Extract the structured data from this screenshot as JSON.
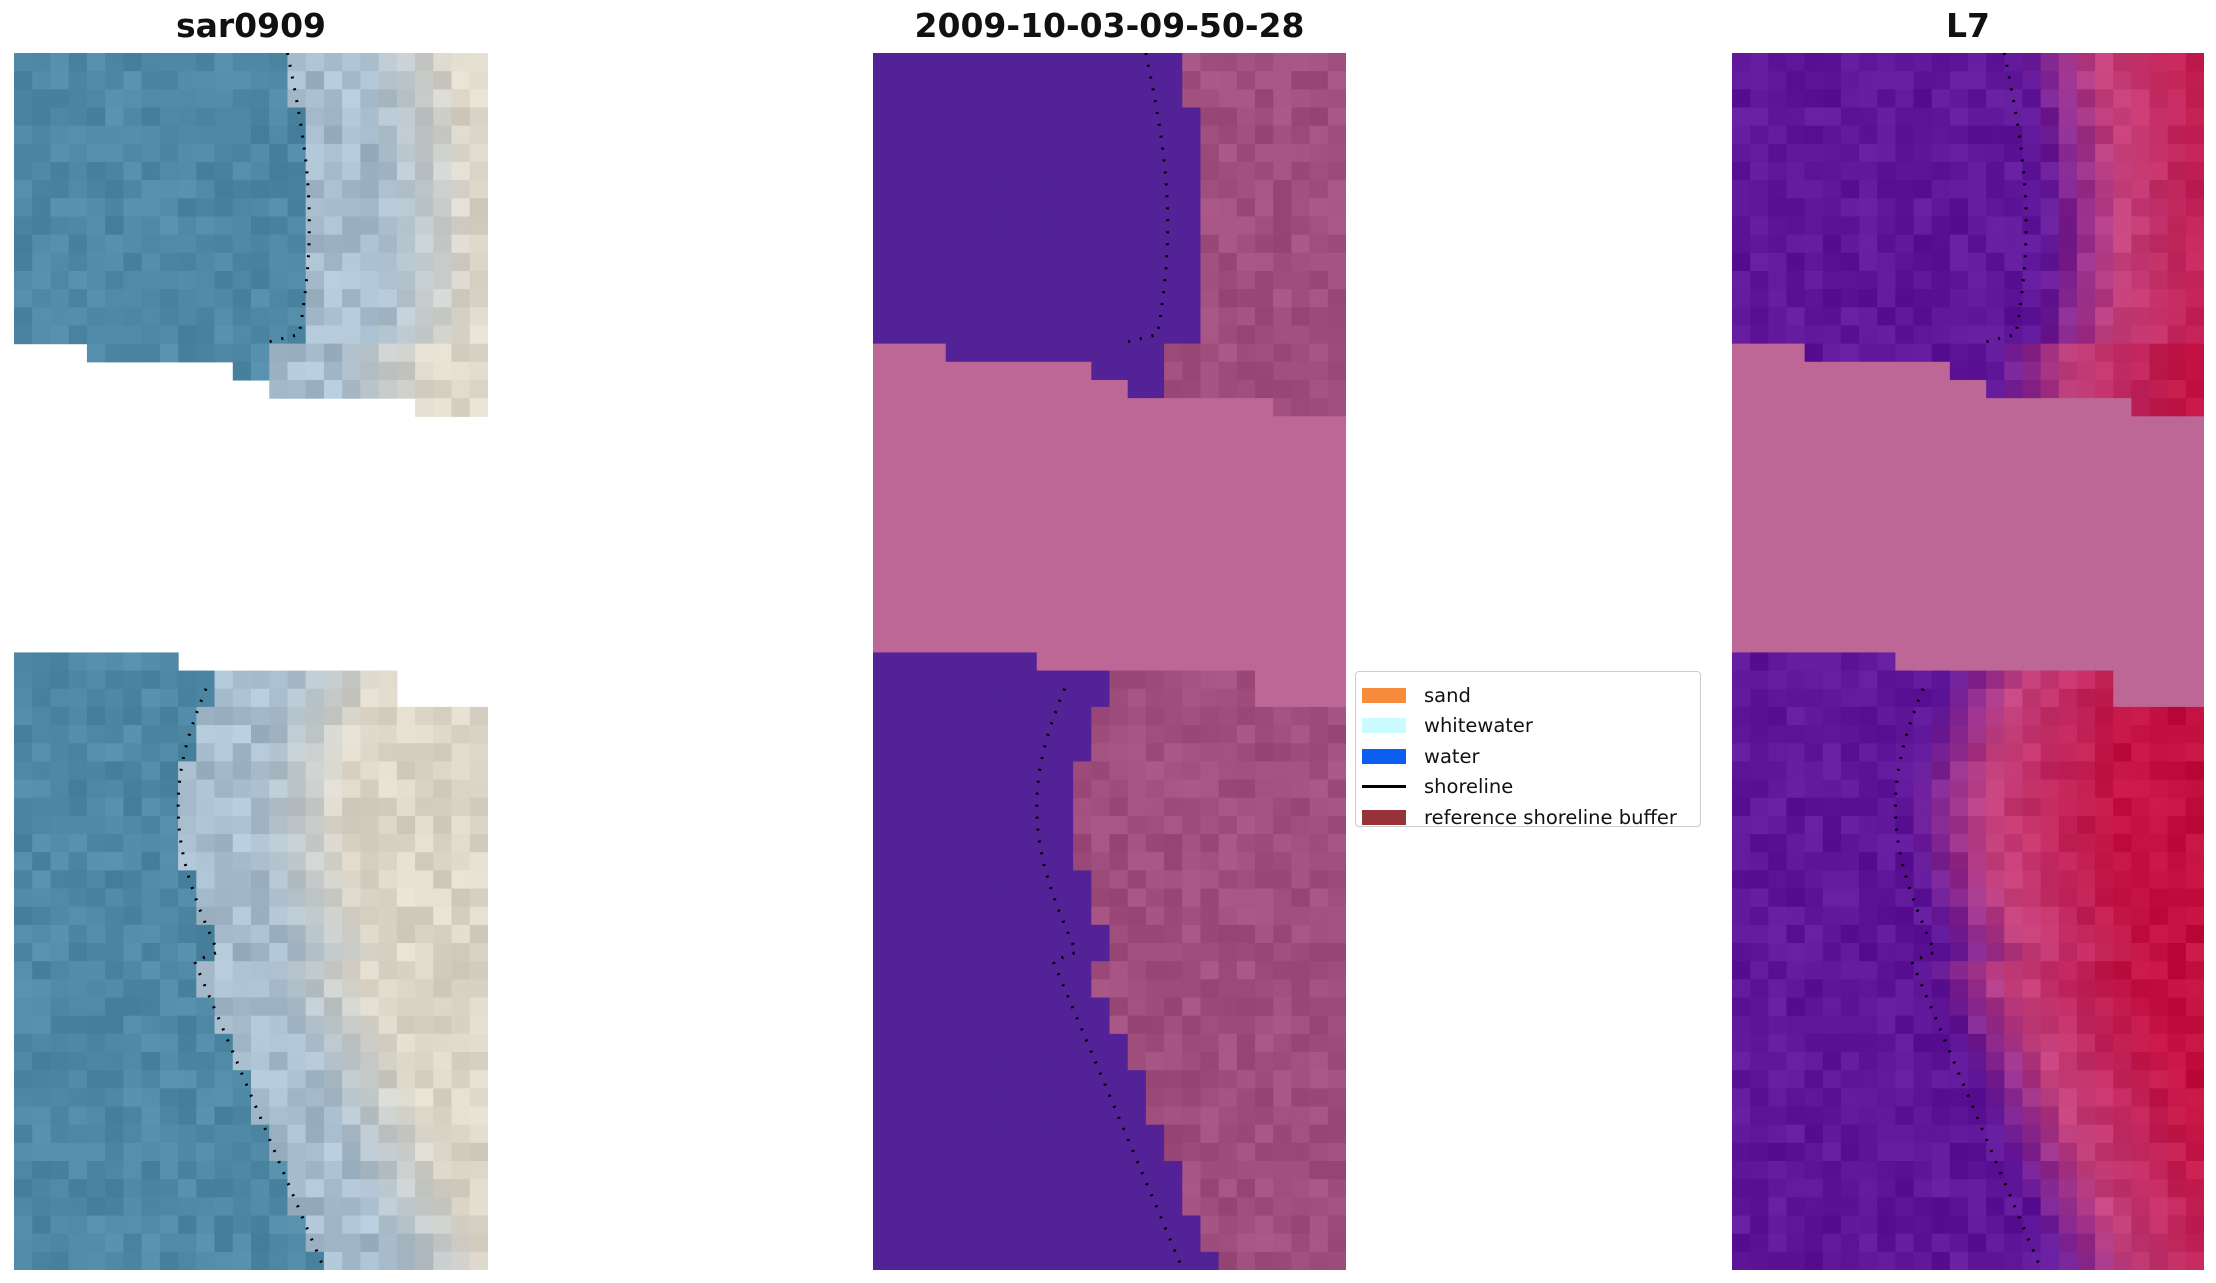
{
  "panels": [
    {
      "title": "sar0909",
      "kind": "rgb"
    },
    {
      "title": "2009-10-03-09-50-28",
      "kind": "classification"
    },
    {
      "title": "L7",
      "kind": "index"
    }
  ],
  "legend": [
    {
      "label": "sand",
      "color": "#f68b3c",
      "type": "patch"
    },
    {
      "label": "whitewater",
      "color": "#c9fbff",
      "type": "patch"
    },
    {
      "label": "water",
      "color": "#0b5ff0",
      "type": "patch"
    },
    {
      "label": "shoreline",
      "color": "#000000",
      "type": "line"
    },
    {
      "label": "reference shoreline buffer",
      "color": "#96323a",
      "type": "patch"
    }
  ],
  "colors": {
    "water_rgb": "#4f88a4",
    "surf_rgb": "#a7bccd",
    "beach_rgb": "#dcd6c8",
    "class_water": "#532297",
    "class_land": "#a04e7e",
    "class_nodata": "#bc6796",
    "index_low": "#5f1699",
    "index_mid": "#c3417d",
    "index_high": "#c21040",
    "index_nodata": "#bc6796"
  }
}
